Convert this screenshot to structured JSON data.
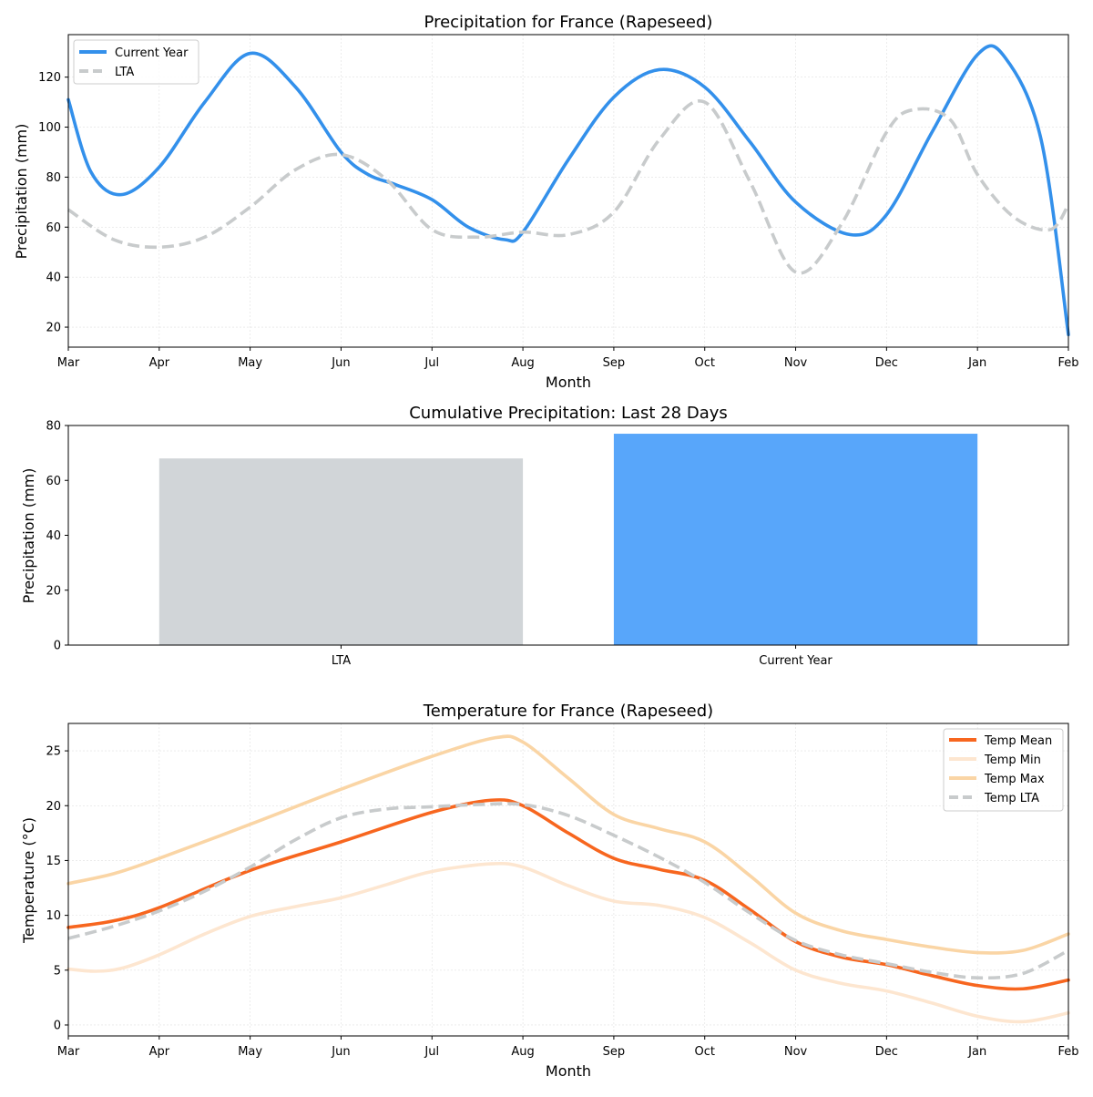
{
  "chart_data": [
    {
      "type": "line",
      "title": "Precipitation for France (Rapeseed)",
      "xlabel": "Month",
      "ylabel": "Precipitation (mm)",
      "categories": [
        "Mar",
        "Apr",
        "May",
        "Jun",
        "Jul",
        "Aug",
        "Sep",
        "Oct",
        "Nov",
        "Dec",
        "Jan",
        "Feb"
      ],
      "ylim": [
        12,
        137
      ],
      "yticks": [
        20,
        40,
        60,
        80,
        100,
        120
      ],
      "legend_position": "top-left",
      "series": [
        {
          "name": "Current Year",
          "color": "#3390eb",
          "style": "solid",
          "x": [
            0,
            0.25,
            0.58,
            1,
            1.5,
            2,
            2.5,
            3,
            3.3,
            3.6,
            4,
            4.4,
            4.8,
            5,
            5.5,
            6,
            6.5,
            7,
            7.5,
            8,
            8.6,
            9,
            9.5,
            10,
            10.3,
            10.7,
            11
          ],
          "values": [
            111,
            82,
            73,
            84,
            110,
            129.5,
            116,
            90,
            81,
            77,
            71,
            60,
            55,
            58,
            87,
            112,
            123,
            116,
            94,
            70,
            57,
            65,
            98,
            129,
            128,
            95,
            17
          ]
        },
        {
          "name": "LTA",
          "color": "#c8cbcc",
          "style": "dashed",
          "x": [
            0,
            0.5,
            1,
            1.5,
            2,
            2.5,
            3,
            3.5,
            4,
            4.5,
            5,
            5.5,
            6,
            6.5,
            7,
            7.5,
            8,
            8.5,
            9,
            9.3,
            9.7,
            10,
            10.4,
            10.8,
            11
          ],
          "values": [
            67,
            55,
            52,
            56,
            68,
            83,
            89,
            79,
            59,
            56,
            58,
            57,
            66,
            95,
            110,
            78,
            42,
            61,
            98,
            107,
            103,
            81,
            64,
            59,
            69
          ]
        }
      ]
    },
    {
      "type": "bar",
      "title": "Cumulative Precipitation: Last 28 Days",
      "xlabel": "",
      "ylabel": "Precipitation (mm)",
      "categories": [
        "LTA",
        "Current Year"
      ],
      "values": [
        68,
        77
      ],
      "colors": [
        "#d1d5d8",
        "#58a6fa"
      ],
      "ylim": [
        0,
        80
      ],
      "yticks": [
        0,
        20,
        40,
        60,
        80
      ]
    },
    {
      "type": "line",
      "title": "Temperature for France (Rapeseed)",
      "xlabel": "Month",
      "ylabel": "Temperature (°C)",
      "categories": [
        "Mar",
        "Apr",
        "May",
        "Jun",
        "Jul",
        "Aug",
        "Sep",
        "Oct",
        "Nov",
        "Dec",
        "Jan",
        "Feb"
      ],
      "ylim": [
        -1,
        27.5
      ],
      "yticks": [
        0,
        5,
        10,
        15,
        20,
        25
      ],
      "legend_position": "top-right",
      "series": [
        {
          "name": "Temp Mean",
          "color": "#f7661f",
          "style": "solid",
          "x": [
            0,
            0.5,
            1,
            2,
            3,
            4,
            4.65,
            5,
            5.5,
            6,
            6.5,
            7,
            7.5,
            8,
            8.5,
            9,
            9.5,
            10,
            10.5,
            11
          ],
          "values": [
            8.9,
            9.5,
            10.7,
            14.1,
            16.7,
            19.4,
            20.5,
            20,
            17.5,
            15.2,
            14.2,
            13.2,
            10.5,
            7.6,
            6.2,
            5.5,
            4.5,
            3.6,
            3.3,
            4.1
          ]
        },
        {
          "name": "Temp Min",
          "color": "#fde6d0",
          "style": "solid",
          "x": [
            0,
            0.3,
            0.6,
            1,
            1.5,
            2,
            2.5,
            3,
            3.5,
            4,
            4.65,
            5,
            5.5,
            6,
            6.5,
            7,
            7.5,
            8,
            8.5,
            9,
            9.5,
            10,
            10.5,
            11
          ],
          "values": [
            5.1,
            4.9,
            5.2,
            6.4,
            8.3,
            9.9,
            10.8,
            11.6,
            12.8,
            14,
            14.7,
            14.4,
            12.7,
            11.3,
            10.9,
            9.8,
            7.5,
            5,
            3.8,
            3.1,
            2,
            0.8,
            0.3,
            1.1
          ]
        },
        {
          "name": "Temp Max",
          "color": "#fad5a5",
          "style": "solid",
          "x": [
            0,
            0.5,
            1,
            2,
            3,
            4,
            4.7,
            5,
            5.5,
            6,
            6.5,
            7,
            7.5,
            8,
            8.5,
            9,
            9.5,
            10,
            10.5,
            11
          ],
          "values": [
            12.9,
            13.8,
            15.2,
            18.3,
            21.5,
            24.5,
            26.2,
            25.8,
            22.5,
            19.2,
            17.9,
            16.7,
            13.6,
            10.2,
            8.6,
            7.8,
            7.1,
            6.6,
            6.8,
            8.3
          ]
        },
        {
          "name": "Temp LTA",
          "color": "#c8cbcc",
          "style": "dashed",
          "x": [
            0,
            0.5,
            1,
            1.5,
            2,
            2.5,
            3,
            3.5,
            4,
            4.5,
            5,
            5.5,
            6,
            6.5,
            7,
            7.5,
            8,
            8.5,
            9,
            9.5,
            10,
            10.5,
            11
          ],
          "values": [
            7.9,
            9,
            10.4,
            12.2,
            14.4,
            16.9,
            18.9,
            19.7,
            19.9,
            20.1,
            20.1,
            19.1,
            17.3,
            15.3,
            13,
            10.2,
            7.7,
            6.4,
            5.6,
            4.8,
            4.3,
            4.7,
            6.8
          ]
        }
      ]
    }
  ]
}
